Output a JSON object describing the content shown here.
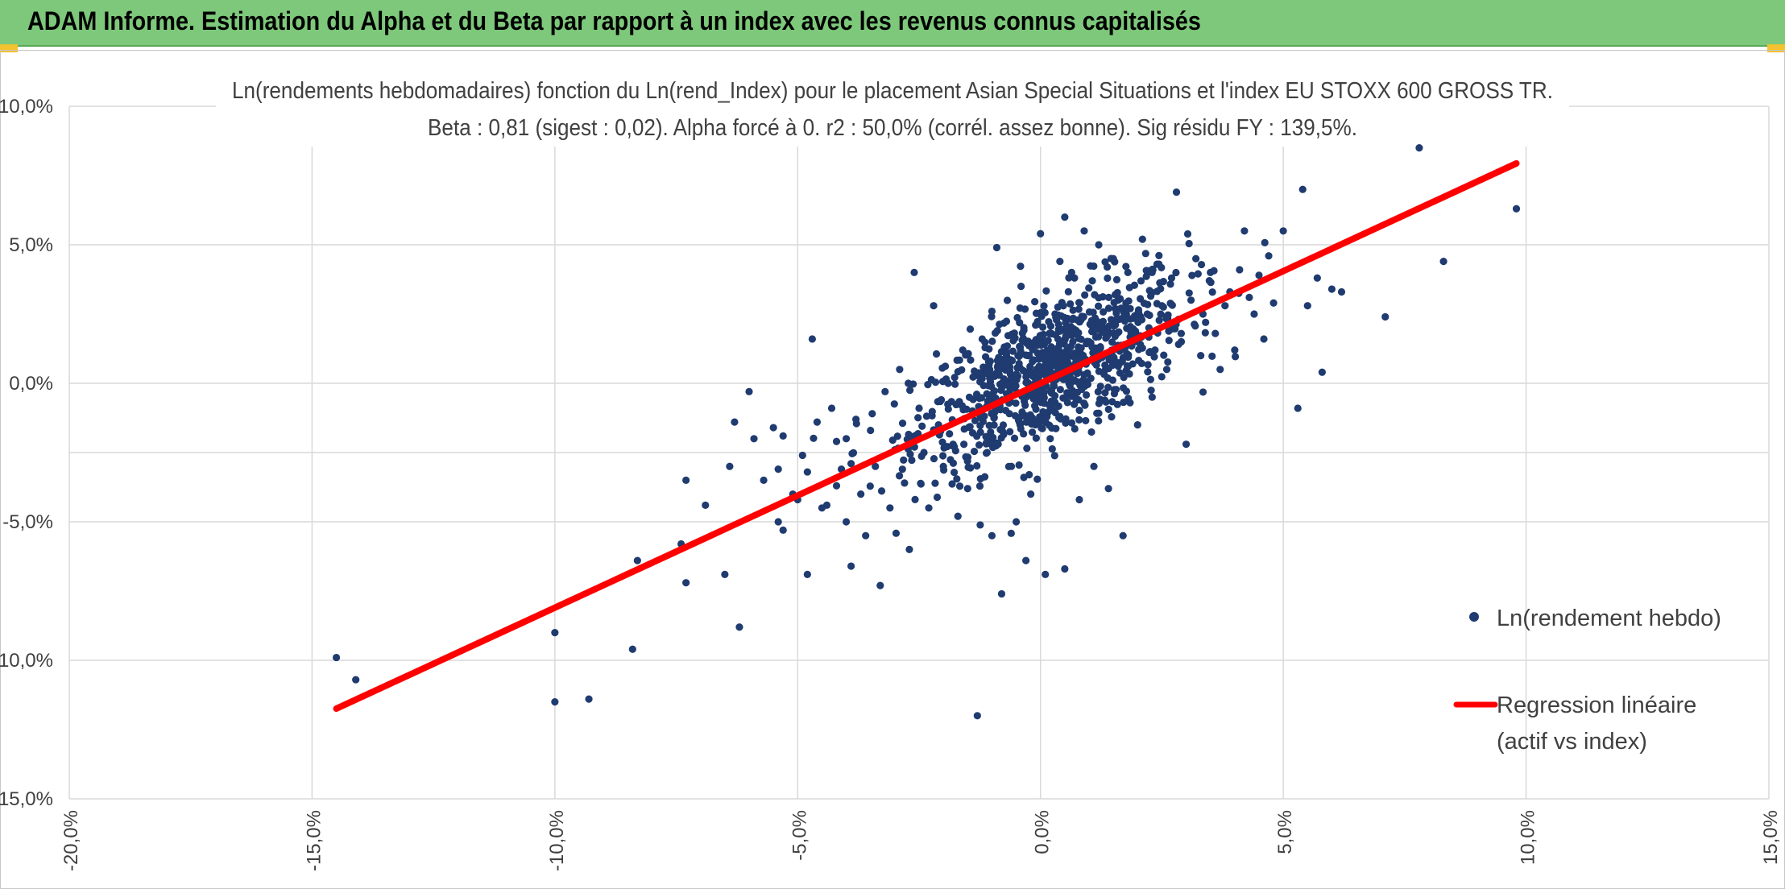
{
  "header": {
    "title": "ADAM Informe. Estimation du Alpha et du Beta par rapport à un index avec les revenus connus capitalisés"
  },
  "colors": {
    "banner": "#7dc87a",
    "points": "#1f3b70",
    "regression": "#ff0000",
    "grid": "#d9d9d9",
    "accent": "#f2c230"
  },
  "chart_data": {
    "type": "scatter",
    "title": "Ln(rendements hebdomadaires) fonction du Ln(rend_Index) pour le placement Asian Special Situations  et l'index EU STOXX 600 GROSS TR.",
    "subtitle": "Beta : 0,81 (sigest : 0,02). Alpha forcé à 0. r2 : 50,0% (corrél. assez bonne). Sig résidu FY : 139,5%.",
    "xlabel": "",
    "ylabel": "",
    "xlim": [
      -0.2,
      0.15
    ],
    "ylim": [
      -0.15,
      0.1
    ],
    "x_ticks": [
      -0.2,
      -0.15,
      -0.1,
      -0.05,
      0.0,
      0.05,
      0.1,
      0.15
    ],
    "y_ticks": [
      -0.15,
      -0.1,
      -0.05,
      0.0,
      0.05,
      0.1
    ],
    "x_tick_labels": [
      "-20,0%",
      "-15,0%",
      "-10,0%",
      "-5,0%",
      "0,0%",
      "5,0%",
      "10,0%",
      "15,0%"
    ],
    "y_tick_labels": [
      "-15,0%",
      "-10,0%",
      "-5,0%",
      "0,0%",
      "5,0%",
      "10,0%"
    ],
    "grid": true,
    "legend_position": "right",
    "series": [
      {
        "name": "Ln(rendement hebdo)",
        "kind": "points",
        "points": [
          [
            -0.145,
            -0.099
          ],
          [
            -0.141,
            -0.107
          ],
          [
            -0.1,
            -0.115
          ],
          [
            -0.1,
            -0.09
          ],
          [
            -0.093,
            -0.114
          ],
          [
            -0.084,
            -0.096
          ],
          [
            -0.083,
            -0.064
          ],
          [
            -0.074,
            -0.058
          ],
          [
            -0.073,
            -0.072
          ],
          [
            -0.073,
            -0.035
          ],
          [
            -0.069,
            -0.044
          ],
          [
            -0.065,
            -0.069
          ],
          [
            -0.064,
            -0.03
          ],
          [
            -0.063,
            -0.014
          ],
          [
            -0.062,
            -0.088
          ],
          [
            -0.06,
            -0.003
          ],
          [
            -0.059,
            -0.02
          ],
          [
            -0.057,
            -0.035
          ],
          [
            -0.055,
            -0.016
          ],
          [
            -0.054,
            -0.031
          ],
          [
            -0.054,
            -0.05
          ],
          [
            -0.053,
            -0.019
          ],
          [
            -0.053,
            -0.053
          ],
          [
            -0.051,
            -0.04
          ],
          [
            -0.05,
            -0.042
          ],
          [
            -0.049,
            -0.026
          ],
          [
            -0.048,
            -0.069
          ],
          [
            -0.048,
            -0.032
          ],
          [
            -0.047,
            0.016
          ],
          [
            -0.046,
            -0.014
          ],
          [
            -0.045,
            -0.045
          ],
          [
            -0.044,
            -0.044
          ],
          [
            -0.043,
            -0.009
          ],
          [
            -0.042,
            -0.021
          ],
          [
            -0.042,
            -0.037
          ],
          [
            -0.041,
            -0.031
          ],
          [
            -0.04,
            -0.05
          ],
          [
            -0.04,
            -0.02
          ],
          [
            -0.039,
            -0.066
          ],
          [
            -0.039,
            -0.029
          ],
          [
            -0.038,
            -0.013
          ],
          [
            -0.037,
            -0.04
          ],
          [
            -0.036,
            -0.055
          ],
          [
            -0.035,
            -0.017
          ],
          [
            -0.034,
            -0.03
          ],
          [
            -0.033,
            -0.073
          ],
          [
            -0.032,
            -0.003
          ],
          [
            -0.031,
            -0.045
          ],
          [
            -0.03,
            -0.024
          ],
          [
            -0.029,
            0.005
          ],
          [
            -0.028,
            -0.036
          ],
          [
            -0.027,
            -0.06
          ],
          [
            -0.026,
            0.04
          ],
          [
            -0.025,
            -0.009
          ],
          [
            -0.024,
            -0.025
          ],
          [
            -0.023,
            -0.045
          ],
          [
            -0.022,
            0.028
          ],
          [
            -0.021,
            -0.015
          ],
          [
            -0.02,
            -0.03
          ],
          [
            -0.019,
            0.0
          ],
          [
            -0.018,
            -0.022
          ],
          [
            -0.017,
            -0.048
          ],
          [
            -0.016,
            0.012
          ],
          [
            -0.015,
            -0.038
          ],
          [
            -0.014,
            -0.01
          ],
          [
            -0.013,
            -0.12
          ],
          [
            -0.012,
            0.016
          ],
          [
            -0.011,
            -0.025
          ],
          [
            -0.01,
            0.026
          ],
          [
            -0.01,
            -0.055
          ],
          [
            -0.009,
            0.049
          ],
          [
            -0.008,
            -0.076
          ],
          [
            -0.007,
            0.01
          ],
          [
            -0.006,
            -0.03
          ],
          [
            -0.005,
            -0.05
          ],
          [
            -0.004,
            0.035
          ],
          [
            -0.003,
            -0.064
          ],
          [
            -0.002,
            -0.04
          ],
          [
            -0.001,
            0.021
          ],
          [
            0.0,
            0.054
          ],
          [
            0.001,
            -0.069
          ],
          [
            0.002,
            -0.02
          ],
          [
            0.003,
            0.025
          ],
          [
            0.004,
            0.044
          ],
          [
            0.004,
            -0.012
          ],
          [
            0.005,
            0.06
          ],
          [
            0.005,
            -0.067
          ],
          [
            0.006,
            0.01
          ],
          [
            0.007,
            0.038
          ],
          [
            0.008,
            -0.042
          ],
          [
            0.009,
            0.055
          ],
          [
            0.01,
            0.015
          ],
          [
            0.011,
            -0.03
          ],
          [
            0.012,
            0.05
          ],
          [
            0.013,
            0.02
          ],
          [
            0.014,
            -0.038
          ],
          [
            0.015,
            0.045
          ],
          [
            0.016,
            0.03
          ],
          [
            0.017,
            -0.055
          ],
          [
            0.018,
            0.04
          ],
          [
            0.019,
            0.007
          ],
          [
            0.02,
            -0.015
          ],
          [
            0.021,
            0.052
          ],
          [
            0.022,
            0.025
          ],
          [
            0.023,
            -0.005
          ],
          [
            0.024,
            0.043
          ],
          [
            0.025,
            0.028
          ],
          [
            0.026,
            0.005
          ],
          [
            0.027,
            0.038
          ],
          [
            0.028,
            0.069
          ],
          [
            0.029,
            0.015
          ],
          [
            0.03,
            -0.022
          ],
          [
            0.031,
            0.03
          ],
          [
            0.032,
            0.045
          ],
          [
            0.033,
            0.01
          ],
          [
            0.034,
            0.022
          ],
          [
            0.035,
            0.04
          ],
          [
            0.036,
            0.018
          ],
          [
            0.037,
            0.005
          ],
          [
            0.038,
            0.028
          ],
          [
            0.039,
            0.033
          ],
          [
            0.04,
            0.012
          ],
          [
            0.041,
            0.041
          ],
          [
            0.042,
            0.055
          ],
          [
            0.043,
            0.031
          ],
          [
            0.044,
            0.025
          ],
          [
            0.045,
            0.039
          ],
          [
            0.046,
            0.016
          ],
          [
            0.047,
            0.046
          ],
          [
            0.048,
            0.029
          ],
          [
            0.05,
            0.055
          ],
          [
            0.053,
            -0.009
          ],
          [
            0.054,
            0.07
          ],
          [
            0.055,
            0.028
          ],
          [
            0.057,
            0.038
          ],
          [
            0.058,
            0.004
          ],
          [
            0.06,
            0.034
          ],
          [
            0.062,
            0.033
          ],
          [
            0.071,
            0.024
          ],
          [
            0.078,
            0.085
          ],
          [
            0.083,
            0.044
          ],
          [
            0.098,
            0.063
          ]
        ]
      },
      {
        "name": "Regression linéaire (actif vs index)",
        "name_line1": "Regression linéaire",
        "name_line2": "(actif vs index)",
        "kind": "line",
        "beta": 0.81,
        "alpha": 0,
        "x_range": [
          -0.145,
          0.098
        ]
      }
    ]
  }
}
